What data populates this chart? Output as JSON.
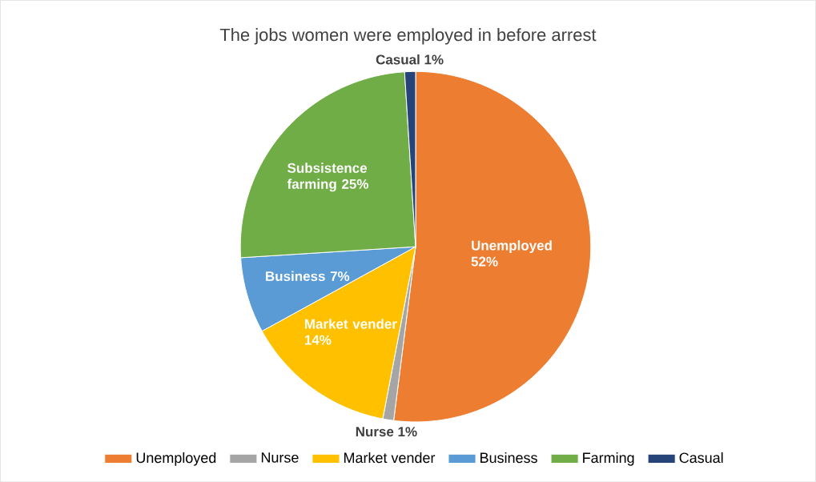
{
  "chart_data": {
    "type": "pie",
    "title": "The jobs women were employed in before  arrest",
    "categories": [
      "Unemployed",
      "Nurse",
      "Market vender",
      "Business",
      "Farming",
      "Casual"
    ],
    "values": [
      52,
      1,
      14,
      7,
      25,
      1
    ],
    "colors": [
      "#ed7d31",
      "#a5a5a5",
      "#ffc000",
      "#5b9bd5",
      "#70ad47",
      "#264478"
    ],
    "value_labels": [
      "Unemployed 52%",
      "Nurse 1%",
      "Market vender 14%",
      "Business 7%",
      "Subsistence farming 25%",
      "Casual 1%"
    ],
    "legend": "bottom"
  }
}
